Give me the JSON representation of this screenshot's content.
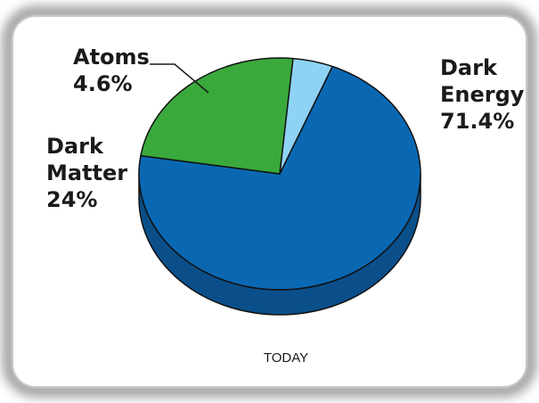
{
  "chart_data": {
    "type": "pie",
    "title": "",
    "caption": "TODAY",
    "slices": [
      {
        "name": "Dark Energy",
        "label_lines": [
          "Dark",
          "Energy"
        ],
        "value": 71.4,
        "value_label": "71.4%",
        "color": "#0a68b3",
        "side_color": "#0a4f8a"
      },
      {
        "name": "Dark Matter",
        "label_lines": [
          "Dark",
          "Matter"
        ],
        "value": 24,
        "value_label": "24%",
        "color": "#3aa93c",
        "side_color": "#2b7f2e"
      },
      {
        "name": "Atoms",
        "label_lines": [
          "Atoms"
        ],
        "value": 4.6,
        "value_label": "4.6%",
        "color": "#8fd3f4",
        "side_color": "#5aa8cf"
      }
    ]
  }
}
